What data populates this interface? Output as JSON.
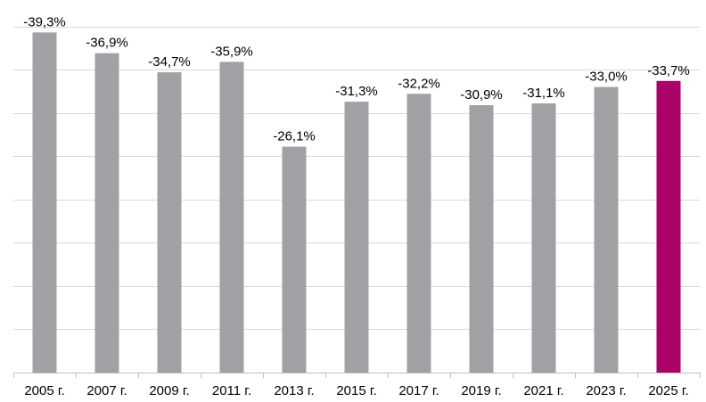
{
  "chart_data": {
    "type": "bar",
    "categories": [
      "2005 г.",
      "2007 г.",
      "2009 г.",
      "2011 г.",
      "2013 г.",
      "2015 г.",
      "2017 г.",
      "2019 г.",
      "2021 г.",
      "2023 г.",
      "2025 г."
    ],
    "values": [
      -39.3,
      -36.9,
      -34.7,
      -35.9,
      -26.1,
      -31.3,
      -32.2,
      -30.9,
      -31.1,
      -33.0,
      -33.7
    ],
    "data_labels": [
      "-39,3%",
      "-36,9%",
      "-34,7%",
      "-35,9%",
      "-26,1%",
      "-31,3%",
      "-32,2%",
      "-30,9%",
      "-31,1%",
      "-33,0%",
      "-33,7%"
    ],
    "title": "",
    "xlabel": "",
    "ylabel": "",
    "ylim": [
      0,
      40
    ],
    "plot_direction": "magnitude shown upward",
    "grid": true,
    "legend": "none",
    "colors": {
      "default": "#a0a1a5",
      "highlight": "#ab0067"
    },
    "highlight_index": 10
  }
}
